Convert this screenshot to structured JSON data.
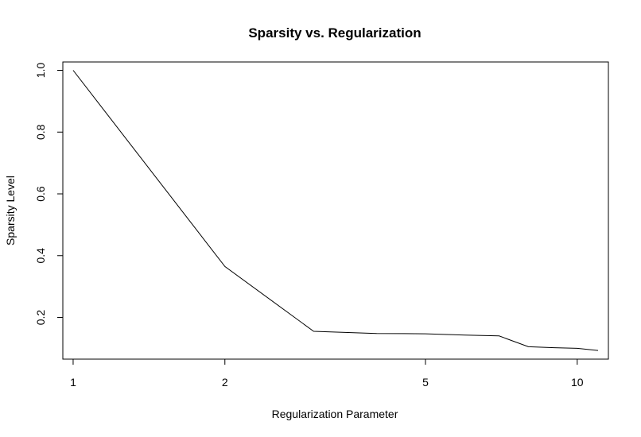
{
  "chart_data": {
    "type": "line",
    "title": "Sparsity vs. Regularization",
    "xlabel": "Regularization Parameter",
    "ylabel": "Sparsity Level",
    "x_scale": "log",
    "xlim": [
      0.954,
      11.53
    ],
    "ylim": [
      0.065,
      1.027
    ],
    "x_ticks": [
      1,
      2,
      5,
      10
    ],
    "x_tick_labels": [
      "1",
      "2",
      "5",
      "10"
    ],
    "y_ticks": [
      0.2,
      0.4,
      0.6,
      0.8,
      1.0
    ],
    "y_tick_labels": [
      "0.2",
      "0.4",
      "0.6",
      "0.8",
      "1.0"
    ],
    "grid": false,
    "series": [
      {
        "x": [
          1,
          2,
          3,
          4,
          5,
          6,
          7,
          8,
          9,
          10,
          11
        ],
        "y": [
          1.0,
          0.365,
          0.155,
          0.148,
          0.147,
          0.143,
          0.14,
          0.105,
          0.102,
          0.1,
          0.093
        ]
      }
    ]
  }
}
